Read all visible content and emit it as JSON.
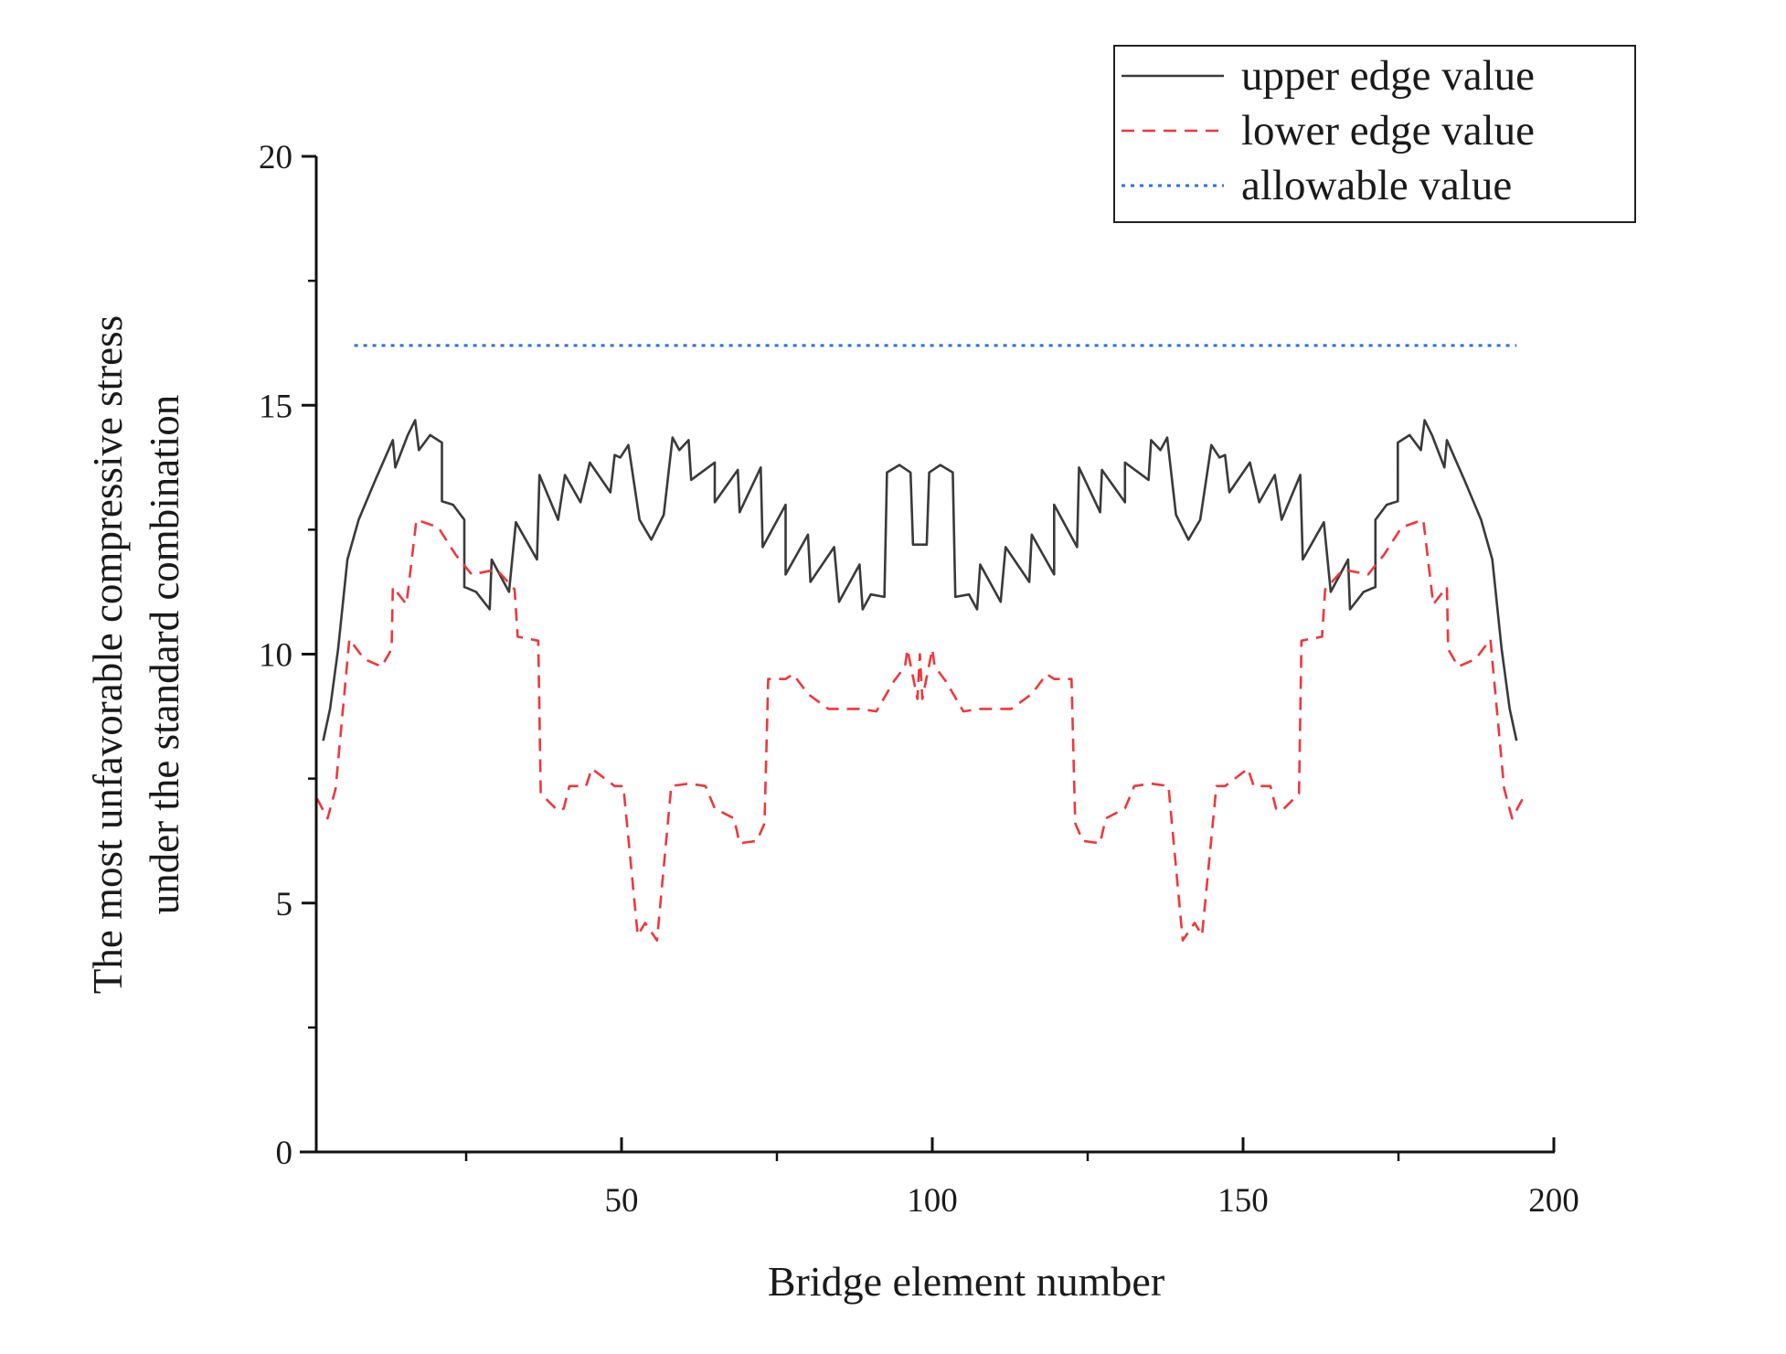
{
  "chart_data": {
    "type": "line",
    "title": "",
    "xlabel": "Bridge element number",
    "ylabel": [
      "The most unfavorable compressive stress",
      "under the standard combination"
    ],
    "xlim": [
      0,
      200
    ],
    "ylim": [
      0,
      20
    ],
    "x_ticks": [
      50,
      100,
      150,
      200
    ],
    "x_minor_ticks": [
      25,
      75,
      125,
      175
    ],
    "y_ticks": [
      0,
      5,
      10,
      15,
      20
    ],
    "y_minor_ticks": [
      2.5,
      7.5,
      12.5,
      17.5
    ],
    "grid": false,
    "legend_position": "top-right",
    "series": [
      {
        "name": "upper edge value",
        "color": "#3a3a3a",
        "style": "solid",
        "points": [
          [
            2,
            8.26
          ],
          [
            3.1,
            8.9
          ],
          [
            4.4,
            10.1
          ],
          [
            5.9,
            11.9
          ],
          [
            7.7,
            12.7
          ],
          [
            10.4,
            13.5
          ],
          [
            13.2,
            14.3
          ],
          [
            13.6,
            13.75
          ],
          [
            15.6,
            14.4
          ],
          [
            16.8,
            14.7
          ],
          [
            17.4,
            14.1
          ],
          [
            19.2,
            14.4
          ],
          [
            21.1,
            14.25
          ],
          [
            21.1,
            13.07
          ],
          [
            22.9,
            13.0
          ],
          [
            24.7,
            12.7
          ],
          [
            24.7,
            11.35
          ],
          [
            26.6,
            11.25
          ],
          [
            28.8,
            10.9
          ],
          [
            29.1,
            11.9
          ],
          [
            31.9,
            11.25
          ],
          [
            33,
            12.65
          ],
          [
            36.4,
            11.9
          ],
          [
            36.8,
            13.6
          ],
          [
            39.8,
            12.7
          ],
          [
            40.9,
            13.6
          ],
          [
            43.4,
            13.05
          ],
          [
            44.9,
            13.85
          ],
          [
            48.2,
            13.25
          ],
          [
            48.9,
            14.0
          ],
          [
            49.8,
            13.95
          ],
          [
            51.1,
            14.2
          ],
          [
            52.9,
            12.7
          ],
          [
            54.8,
            12.3
          ],
          [
            56.8,
            12.8
          ],
          [
            58.2,
            14.35
          ],
          [
            59.3,
            14.1
          ],
          [
            60.8,
            14.3
          ],
          [
            61.2,
            13.5
          ],
          [
            65,
            13.85
          ],
          [
            65,
            13.05
          ],
          [
            68.7,
            13.7
          ],
          [
            69,
            12.85
          ],
          [
            72.4,
            13.75
          ],
          [
            72.7,
            12.15
          ],
          [
            76.4,
            13.0
          ],
          [
            76.4,
            11.6
          ],
          [
            80,
            12.4
          ],
          [
            80.4,
            11.45
          ],
          [
            84.2,
            12.15
          ],
          [
            85,
            11.05
          ],
          [
            88.3,
            11.8
          ],
          [
            88.8,
            10.9
          ],
          [
            90.1,
            11.2
          ],
          [
            92.3,
            11.15
          ],
          [
            92.7,
            13.65
          ],
          [
            94.7,
            13.8
          ],
          [
            96.5,
            13.65
          ],
          [
            96.9,
            12.2
          ],
          [
            99.1,
            12.2
          ],
          [
            99.5,
            13.65
          ],
          [
            101.3,
            13.8
          ],
          [
            103.3,
            13.65
          ],
          [
            103.7,
            11.15
          ],
          [
            105.9,
            11.2
          ],
          [
            107.2,
            10.9
          ],
          [
            107.7,
            11.8
          ],
          [
            111,
            11.05
          ],
          [
            111.8,
            12.15
          ],
          [
            115.6,
            11.45
          ],
          [
            116,
            12.4
          ],
          [
            119.6,
            11.6
          ],
          [
            119.6,
            13.0
          ],
          [
            123.3,
            12.15
          ],
          [
            123.6,
            13.75
          ],
          [
            127,
            12.85
          ],
          [
            127.3,
            13.7
          ],
          [
            131,
            13.05
          ],
          [
            131,
            13.85
          ],
          [
            134.8,
            13.5
          ],
          [
            135.2,
            14.3
          ],
          [
            136.7,
            14.1
          ],
          [
            137.8,
            14.35
          ],
          [
            139.2,
            12.8
          ],
          [
            141.2,
            12.3
          ],
          [
            143.1,
            12.7
          ],
          [
            144.9,
            14.2
          ],
          [
            146.2,
            13.95
          ],
          [
            147.1,
            14.0
          ],
          [
            147.8,
            13.25
          ],
          [
            151.1,
            13.85
          ],
          [
            152.6,
            13.05
          ],
          [
            155.1,
            13.6
          ],
          [
            156.2,
            12.7
          ],
          [
            159.2,
            13.6
          ],
          [
            159.6,
            11.9
          ],
          [
            163,
            12.65
          ],
          [
            164.1,
            11.25
          ],
          [
            166.9,
            11.9
          ],
          [
            167.2,
            10.9
          ],
          [
            169.4,
            11.25
          ],
          [
            171.3,
            11.35
          ],
          [
            171.3,
            12.7
          ],
          [
            173.1,
            13.0
          ],
          [
            174.9,
            13.07
          ],
          [
            174.9,
            14.25
          ],
          [
            176.8,
            14.4
          ],
          [
            178.6,
            14.1
          ],
          [
            179.2,
            14.7
          ],
          [
            180.4,
            14.4
          ],
          [
            182.4,
            13.75
          ],
          [
            182.8,
            14.3
          ],
          [
            185.6,
            13.5
          ],
          [
            188.3,
            12.7
          ],
          [
            190.1,
            11.9
          ],
          [
            191.6,
            10.1
          ],
          [
            192.9,
            8.9
          ],
          [
            194,
            8.26
          ]
        ]
      },
      {
        "name": "lower edge value",
        "color": "#f0363c",
        "style": "dashed",
        "points": [
          [
            1,
            7.1
          ],
          [
            2.7,
            6.7
          ],
          [
            4,
            7.3
          ],
          [
            6.2,
            10.3
          ],
          [
            8.6,
            9.9
          ],
          [
            11.4,
            9.75
          ],
          [
            13,
            10.1
          ],
          [
            13.2,
            11.35
          ],
          [
            15.4,
            11.0
          ],
          [
            17,
            12.7
          ],
          [
            20.5,
            12.55
          ],
          [
            23.3,
            12.0
          ],
          [
            25.9,
            11.6
          ],
          [
            29.9,
            11.7
          ],
          [
            32.8,
            11.3
          ],
          [
            33.3,
            10.35
          ],
          [
            36.6,
            10.27
          ],
          [
            37,
            7.2
          ],
          [
            39.8,
            6.85
          ],
          [
            40.7,
            6.9
          ],
          [
            41.6,
            7.35
          ],
          [
            44.3,
            7.35
          ],
          [
            45.2,
            7.7
          ],
          [
            48.9,
            7.35
          ],
          [
            50.3,
            7.35
          ],
          [
            52.6,
            4.35
          ],
          [
            53.8,
            4.6
          ],
          [
            55.7,
            4.25
          ],
          [
            58,
            7.35
          ],
          [
            60.8,
            7.4
          ],
          [
            63.5,
            7.35
          ],
          [
            65,
            6.9
          ],
          [
            68.1,
            6.7
          ],
          [
            69,
            6.2
          ],
          [
            71.8,
            6.25
          ],
          [
            73,
            6.6
          ],
          [
            73.6,
            9.5
          ],
          [
            76.4,
            9.5
          ],
          [
            77.6,
            9.6
          ],
          [
            80,
            9.2
          ],
          [
            83.3,
            8.9
          ],
          [
            88.3,
            8.9
          ],
          [
            91,
            8.85
          ],
          [
            93.8,
            9.45
          ],
          [
            95.6,
            9.75
          ],
          [
            96,
            10.1
          ],
          [
            97.6,
            9.1
          ],
          [
            98,
            10.0
          ],
          [
            98.4,
            9.1
          ],
          [
            100,
            10.1
          ],
          [
            100.4,
            9.75
          ],
          [
            102.2,
            9.45
          ],
          [
            105,
            8.85
          ],
          [
            107.7,
            8.9
          ],
          [
            112.7,
            8.9
          ],
          [
            116,
            9.2
          ],
          [
            118.4,
            9.6
          ],
          [
            119.6,
            9.5
          ],
          [
            122.4,
            9.5
          ],
          [
            123,
            6.6
          ],
          [
            124.2,
            6.25
          ],
          [
            127,
            6.2
          ],
          [
            127.9,
            6.7
          ],
          [
            131,
            6.9
          ],
          [
            132.5,
            7.35
          ],
          [
            135.2,
            7.4
          ],
          [
            138,
            7.35
          ],
          [
            140.3,
            4.25
          ],
          [
            142.2,
            4.6
          ],
          [
            143.4,
            4.35
          ],
          [
            145.7,
            7.35
          ],
          [
            147.1,
            7.35
          ],
          [
            150.8,
            7.7
          ],
          [
            151.7,
            7.35
          ],
          [
            154.4,
            7.35
          ],
          [
            155.3,
            6.9
          ],
          [
            156.2,
            6.85
          ],
          [
            159,
            7.2
          ],
          [
            159.4,
            10.27
          ],
          [
            162.7,
            10.35
          ],
          [
            163.2,
            11.3
          ],
          [
            166.1,
            11.7
          ],
          [
            170.1,
            11.6
          ],
          [
            172.7,
            12.0
          ],
          [
            175.5,
            12.55
          ],
          [
            179,
            12.7
          ],
          [
            180.6,
            11.0
          ],
          [
            182.8,
            11.35
          ],
          [
            183,
            10.1
          ],
          [
            184.6,
            9.75
          ],
          [
            187.4,
            9.9
          ],
          [
            189.8,
            10.3
          ],
          [
            192,
            7.3
          ],
          [
            193.3,
            6.7
          ],
          [
            195,
            7.1
          ]
        ]
      },
      {
        "name": "allowable value",
        "color": "#2f6fe0",
        "style": "dotted",
        "points": [
          [
            7,
            16.2
          ],
          [
            194,
            16.2
          ]
        ]
      }
    ]
  }
}
